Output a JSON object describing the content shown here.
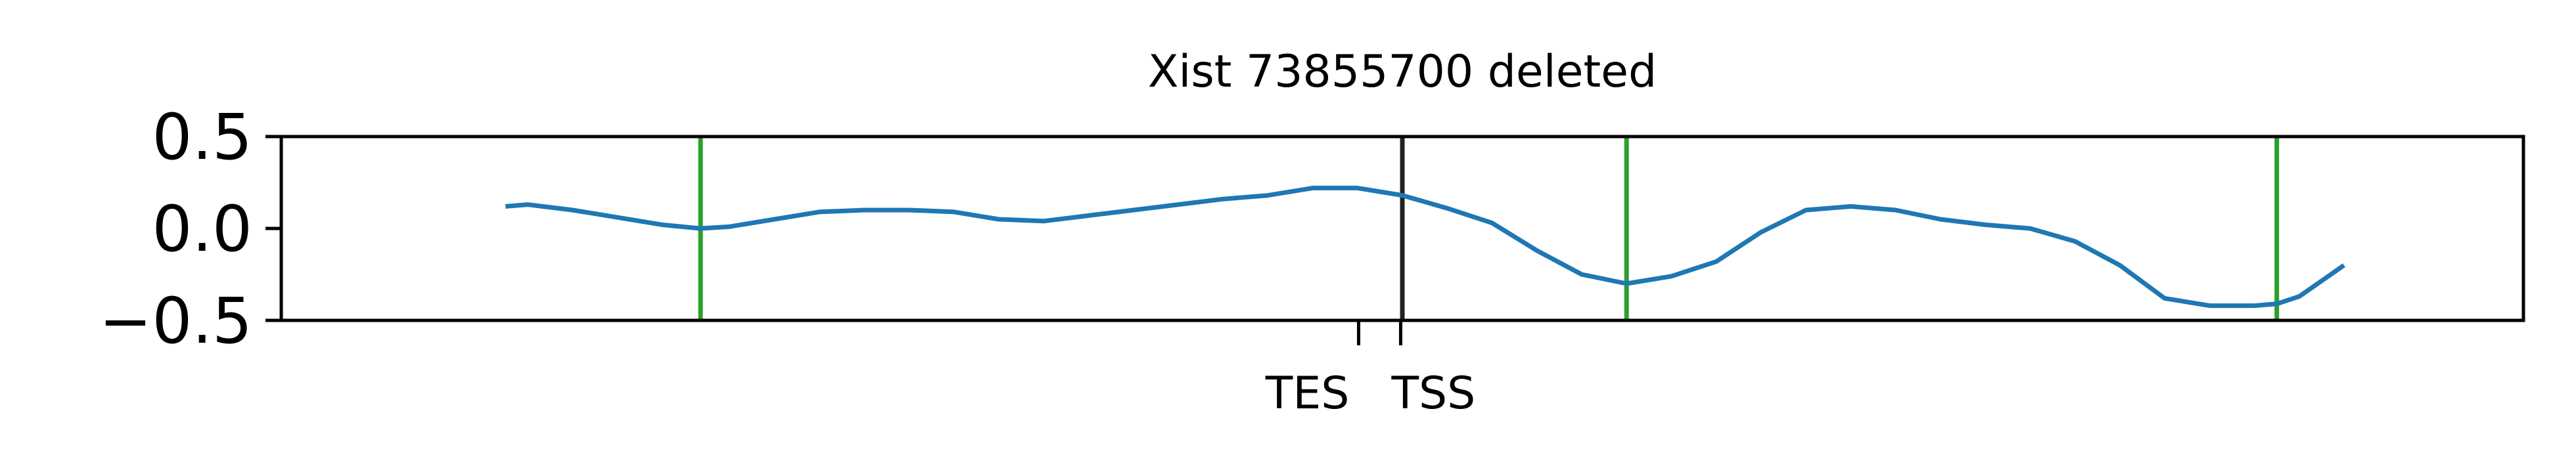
{
  "chart_data": {
    "type": "line",
    "title": "Xist 73855700 deleted",
    "xlabel": "",
    "ylabel": "",
    "xlim": [
      -1.0,
      1.0
    ],
    "ylim": [
      -0.5,
      0.5
    ],
    "grid": false,
    "legend": null,
    "y_ticks": [
      {
        "value": 0.5,
        "label": "0.5"
      },
      {
        "value": 0.0,
        "label": "0.0"
      },
      {
        "value": -0.5,
        "label": "−0.5"
      }
    ],
    "x_ticks": [
      {
        "value": -0.039,
        "label": "TES"
      },
      {
        "value": -0.0015,
        "label": "TSS"
      }
    ],
    "colors": {
      "series": "#1f77b4",
      "marker_lines": "#2ca02c",
      "tss_line": "#222222",
      "axes": "#000000"
    },
    "vertical_lines": [
      {
        "x": -0.626,
        "color": "#2ca02c"
      },
      {
        "x": 0.0,
        "color": "#222222"
      },
      {
        "x": 0.2,
        "color": "#2ca02c"
      },
      {
        "x": 0.78,
        "color": "#2ca02c"
      }
    ],
    "series": [
      {
        "x": [
          -0.8,
          -0.78,
          -0.74,
          -0.7,
          -0.66,
          -0.626,
          -0.6,
          -0.56,
          -0.52,
          -0.48,
          -0.44,
          -0.4,
          -0.36,
          -0.32,
          -0.28,
          -0.24,
          -0.2,
          -0.16,
          -0.12,
          -0.08,
          -0.04,
          -0.02,
          0.0,
          0.04,
          0.08,
          0.12,
          0.16,
          0.2,
          0.24,
          0.28,
          0.32,
          0.36,
          0.4,
          0.44,
          0.48,
          0.52,
          0.56,
          0.6,
          0.64,
          0.68,
          0.72,
          0.76,
          0.78,
          0.8,
          0.84
        ],
        "values": [
          0.12,
          0.13,
          0.1,
          0.06,
          0.02,
          0.0,
          0.01,
          0.05,
          0.09,
          0.1,
          0.1,
          0.09,
          0.05,
          0.04,
          0.07,
          0.1,
          0.13,
          0.16,
          0.18,
          0.22,
          0.22,
          0.2,
          0.18,
          0.11,
          0.03,
          -0.12,
          -0.25,
          -0.3,
          -0.26,
          -0.18,
          -0.02,
          0.1,
          0.12,
          0.1,
          0.05,
          0.02,
          0.0,
          -0.07,
          -0.2,
          -0.38,
          -0.42,
          -0.42,
          -0.41,
          -0.37,
          -0.2
        ]
      }
    ]
  }
}
